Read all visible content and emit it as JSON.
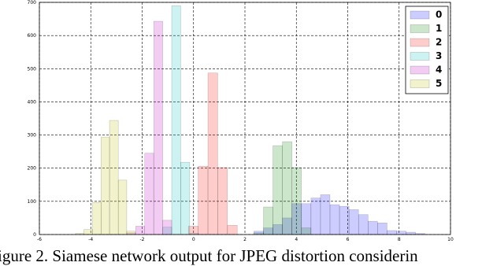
{
  "chart_data": {
    "type": "histogram",
    "caption": "igure 2. Siamese network output for JPEG distortion considerin",
    "xlim": [
      -6,
      10
    ],
    "xticks": [
      -6,
      -4,
      -2,
      0,
      2,
      4,
      6,
      8,
      10
    ],
    "ylim": [
      0,
      700
    ],
    "yticks": [
      0,
      100,
      200,
      300,
      400,
      500,
      600,
      700
    ],
    "grid": true,
    "legend": "upper right",
    "series": [
      {
        "name": "0",
        "color": "#0000ff",
        "bins": [
          2.35,
          2.72,
          3.09,
          3.46,
          3.83,
          4.2,
          4.57,
          4.94,
          5.31,
          5.68,
          6.05,
          6.42,
          6.79,
          7.16,
          7.53,
          7.9,
          8.27,
          8.64,
          9.01
        ],
        "values": [
          10,
          20,
          30,
          50,
          93,
          93,
          110,
          120,
          90,
          85,
          75,
          60,
          40,
          35,
          12,
          10,
          7,
          3
        ]
      },
      {
        "name": "1",
        "color": "#008000",
        "bins": [
          2.35,
          2.72,
          3.09,
          3.46,
          3.83,
          4.2,
          4.57
        ],
        "values": [
          5,
          83,
          268,
          280,
          202,
          20
        ]
      },
      {
        "name": "2",
        "color": "#ff0000",
        "bins": [
          -0.2,
          0.18,
          0.56,
          0.94,
          1.32,
          1.7
        ],
        "values": [
          25,
          206,
          487,
          202,
          28
        ]
      },
      {
        "name": "3",
        "color": "#00bfbf",
        "bins": [
          -1.2,
          -0.85,
          -0.5,
          -0.15,
          0.2
        ],
        "values": [
          22,
          690,
          218,
          3
        ]
      },
      {
        "name": "4",
        "color": "#bf00bf",
        "bins": [
          -2.6,
          -2.25,
          -1.9,
          -1.55,
          -1.2,
          -0.85
        ],
        "values": [
          5,
          25,
          245,
          643,
          43
        ]
      },
      {
        "name": "5",
        "color": "#bfbf00",
        "bins": [
          -4.6,
          -4.27,
          -3.93,
          -3.6,
          -3.27,
          -2.93,
          -2.6,
          -2.27
        ],
        "values": [
          3,
          15,
          97,
          294,
          344,
          164,
          10
        ]
      }
    ]
  }
}
